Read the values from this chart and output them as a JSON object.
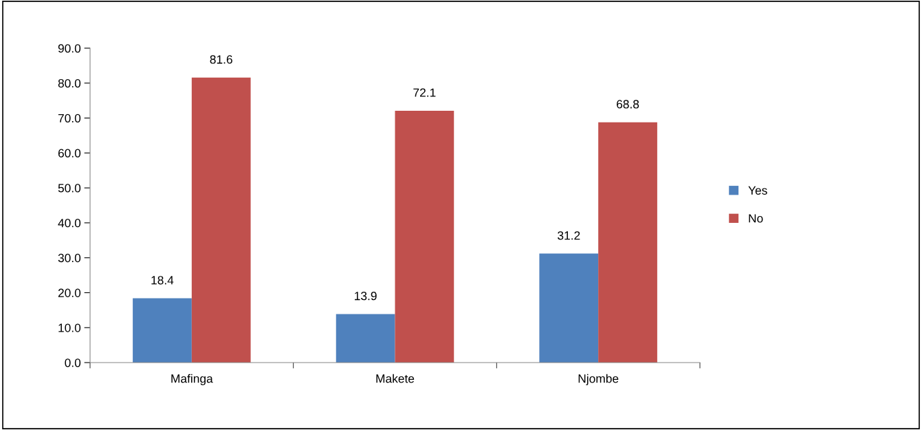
{
  "chart_data": {
    "type": "bar",
    "categories": [
      "Mafinga",
      "Makete",
      "Njombe"
    ],
    "series": [
      {
        "name": "Yes",
        "color": "#4f81bd",
        "values": [
          18.4,
          13.9,
          31.2
        ]
      },
      {
        "name": "No",
        "color": "#c0504d",
        "values": [
          81.6,
          72.1,
          68.8
        ]
      }
    ],
    "ylim": [
      0,
      90
    ],
    "yticks": [
      {
        "value": 0,
        "label": "0.0"
      },
      {
        "value": 10,
        "label": "10.0"
      },
      {
        "value": 20,
        "label": "20.0"
      },
      {
        "value": 30,
        "label": "30.0"
      },
      {
        "value": 40,
        "label": "40.0"
      },
      {
        "value": 50,
        "label": "50.0"
      },
      {
        "value": 60,
        "label": "60.0"
      },
      {
        "value": 70,
        "label": "70.0"
      },
      {
        "value": 80,
        "label": "80.0"
      },
      {
        "value": 90,
        "label": "90.0"
      }
    ],
    "data_labels": true,
    "legend": "right",
    "grid": false
  }
}
